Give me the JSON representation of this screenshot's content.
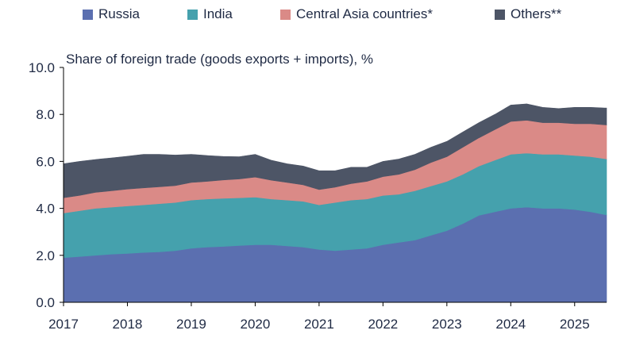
{
  "chart_data": {
    "type": "area",
    "stacked": true,
    "title": "Share of foreign trade (goods exports + imports), %",
    "xlabel": "",
    "ylabel": "",
    "xlim": [
      2017.0,
      2025.5
    ],
    "ylim": [
      0,
      10
    ],
    "x_ticks": [
      "2017",
      "2018",
      "2019",
      "2020",
      "2021",
      "2022",
      "2023",
      "2024",
      "2025"
    ],
    "y_ticks": [
      "0.0",
      "2.0",
      "4.0",
      "6.0",
      "8.0",
      "10.0"
    ],
    "grid": false,
    "legend_position": "top",
    "x": [
      2017.0,
      2017.25,
      2017.5,
      2017.75,
      2018.0,
      2018.25,
      2018.5,
      2018.75,
      2019.0,
      2019.25,
      2019.5,
      2019.75,
      2020.0,
      2020.25,
      2020.5,
      2020.75,
      2021.0,
      2021.25,
      2021.5,
      2021.75,
      2022.0,
      2022.25,
      2022.5,
      2022.75,
      2023.0,
      2023.25,
      2023.5,
      2023.75,
      2024.0,
      2024.25,
      2024.5,
      2024.75,
      2025.0,
      2025.25,
      2025.5
    ],
    "series": [
      {
        "name": "Russia",
        "color": "#5b6fb0",
        "values": [
          1.9,
          1.95,
          2.0,
          2.05,
          2.08,
          2.12,
          2.15,
          2.2,
          2.3,
          2.35,
          2.38,
          2.42,
          2.45,
          2.45,
          2.4,
          2.35,
          2.25,
          2.2,
          2.25,
          2.3,
          2.45,
          2.55,
          2.65,
          2.85,
          3.05,
          3.35,
          3.7,
          3.85,
          4.0,
          4.05,
          4.0,
          4.0,
          3.95,
          3.85,
          3.72
        ]
      },
      {
        "name": "India",
        "color": "#45a1ad",
        "values": [
          1.9,
          1.95,
          2.0,
          2.0,
          2.02,
          2.03,
          2.05,
          2.05,
          2.05,
          2.05,
          2.05,
          2.03,
          2.03,
          1.95,
          1.95,
          1.95,
          1.9,
          2.05,
          2.1,
          2.1,
          2.1,
          2.05,
          2.1,
          2.1,
          2.1,
          2.1,
          2.1,
          2.2,
          2.3,
          2.3,
          2.3,
          2.3,
          2.3,
          2.35,
          2.38
        ]
      },
      {
        "name": "Central Asia countries*",
        "color": "#da8a87",
        "values": [
          0.65,
          0.65,
          0.68,
          0.7,
          0.72,
          0.72,
          0.72,
          0.72,
          0.75,
          0.75,
          0.78,
          0.8,
          0.85,
          0.8,
          0.75,
          0.7,
          0.65,
          0.65,
          0.7,
          0.75,
          0.8,
          0.85,
          0.9,
          1.0,
          1.05,
          1.15,
          1.2,
          1.3,
          1.4,
          1.4,
          1.35,
          1.35,
          1.35,
          1.4,
          1.45
        ]
      },
      {
        "name": "Others**",
        "color": "#4d5566",
        "values": [
          1.45,
          1.45,
          1.4,
          1.4,
          1.4,
          1.43,
          1.38,
          1.3,
          1.2,
          1.1,
          1.0,
          0.95,
          0.97,
          0.85,
          0.8,
          0.8,
          0.8,
          0.7,
          0.7,
          0.6,
          0.65,
          0.65,
          0.65,
          0.65,
          0.65,
          0.65,
          0.65,
          0.65,
          0.7,
          0.7,
          0.65,
          0.6,
          0.7,
          0.7,
          0.72
        ]
      }
    ]
  }
}
